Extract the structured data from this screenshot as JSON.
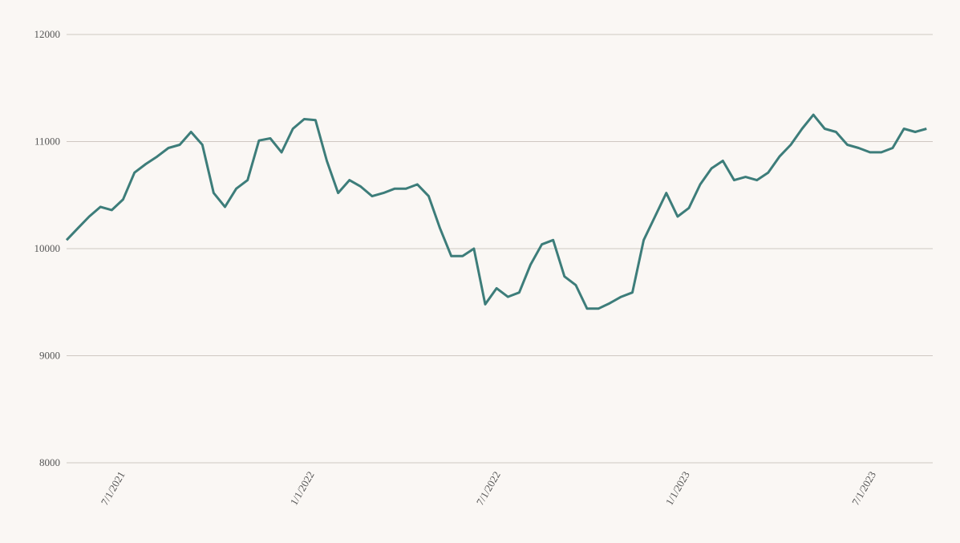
{
  "chart_data": {
    "type": "line",
    "color": "#3d7d7a",
    "grid": true,
    "ylim": [
      8000,
      12000
    ],
    "yticks": [
      8000,
      9000,
      10000,
      11000,
      12000
    ],
    "xlim": [
      "2021-05-05",
      "2023-08-25"
    ],
    "xticks": [
      {
        "value": "2021-07-01",
        "label": "7/1/2021"
      },
      {
        "value": "2022-01-01",
        "label": "1/1/2022"
      },
      {
        "value": "2022-07-01",
        "label": "7/1/2022"
      },
      {
        "value": "2023-01-01",
        "label": "1/1/2023"
      },
      {
        "value": "2023-07-01",
        "label": "7/1/2023"
      }
    ],
    "x": [
      "2021-05-05",
      "2021-05-16",
      "2021-05-27",
      "2021-06-07",
      "2021-06-18",
      "2021-06-29",
      "2021-07-10",
      "2021-07-21",
      "2021-08-01",
      "2021-08-12",
      "2021-08-23",
      "2021-09-03",
      "2021-09-14",
      "2021-09-25",
      "2021-10-06",
      "2021-10-17",
      "2021-10-28",
      "2021-11-08",
      "2021-11-19",
      "2021-11-30",
      "2021-12-11",
      "2021-12-22",
      "2022-01-02",
      "2022-01-13",
      "2022-01-24",
      "2022-02-04",
      "2022-02-15",
      "2022-02-26",
      "2022-03-09",
      "2022-03-20",
      "2022-03-31",
      "2022-04-11",
      "2022-04-22",
      "2022-05-03",
      "2022-05-14",
      "2022-05-25",
      "2022-06-05",
      "2022-06-16",
      "2022-06-27",
      "2022-07-08",
      "2022-07-19",
      "2022-07-30",
      "2022-08-10",
      "2022-08-21",
      "2022-09-01",
      "2022-09-12",
      "2022-09-23",
      "2022-10-04",
      "2022-10-15",
      "2022-10-26",
      "2022-11-06",
      "2022-11-17",
      "2022-11-28",
      "2022-12-09",
      "2022-12-20",
      "2022-12-31",
      "2023-01-11",
      "2023-01-22",
      "2023-02-02",
      "2023-02-13",
      "2023-02-24",
      "2023-03-07",
      "2023-03-18",
      "2023-03-29",
      "2023-04-09",
      "2023-04-20",
      "2023-05-01",
      "2023-05-12",
      "2023-05-23",
      "2023-06-03",
      "2023-06-14",
      "2023-06-25",
      "2023-07-06",
      "2023-07-17",
      "2023-07-28",
      "2023-08-08",
      "2023-08-19"
    ],
    "values": [
      10080,
      10190,
      10300,
      10390,
      10360,
      10460,
      10710,
      10790,
      10860,
      10940,
      10970,
      11090,
      10970,
      10520,
      10390,
      10560,
      10640,
      11010,
      11030,
      10900,
      11120,
      11210,
      11200,
      10820,
      10520,
      10640,
      10580,
      10490,
      10520,
      10560,
      10560,
      10600,
      10490,
      10190,
      9930,
      9930,
      10000,
      9480,
      9630,
      9550,
      9590,
      9850,
      10040,
      10080,
      9740,
      9660,
      9440,
      9440,
      9490,
      9550,
      9590,
      10080,
      10300,
      10520,
      10300,
      10380,
      10600,
      10750,
      10820,
      10640,
      10670,
      10640,
      10710,
      10860,
      10970,
      11120,
      11250,
      11120,
      11090,
      10970,
      10940,
      10900,
      10900,
      10940,
      11120,
      11090,
      11120
    ]
  }
}
